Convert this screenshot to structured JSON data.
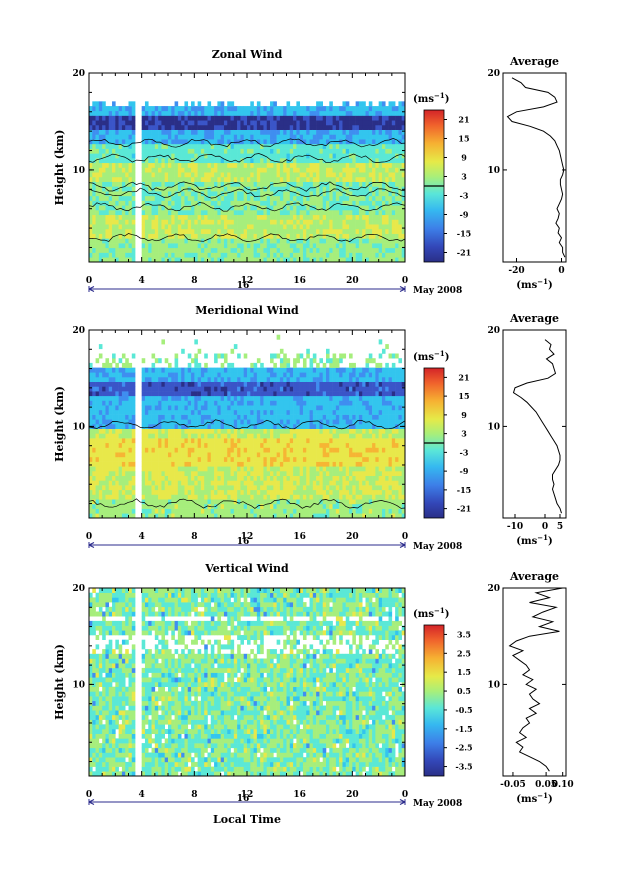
{
  "figure": {
    "xlabel": "Local Time",
    "month_label": "May 2008",
    "day_label": "16",
    "ylabel": "Height (km)",
    "x_ticks": [
      "0",
      "4",
      "8",
      "12",
      "16",
      "20",
      "0"
    ],
    "y_ticks": [
      "20",
      "10"
    ]
  },
  "chart_data": [
    {
      "type": "heatmap",
      "title": "Zonal Wind",
      "unit_label": "(ms",
      "unit_sup": "−1",
      "xlim": [
        0,
        24
      ],
      "ylim": [
        0.5,
        20
      ],
      "colorbar": {
        "ticks": [
          "21",
          "15",
          "9",
          "3",
          "-3",
          "-9",
          "-15",
          "-21"
        ],
        "range": [
          -24,
          24
        ],
        "zero_line": 0
      },
      "profile": {
        "title": "Average",
        "x_ticks": [
          "-20",
          "0"
        ],
        "xlim": [
          -26,
          2
        ],
        "unit_label": "(ms",
        "unit_sup": "−1",
        "heights": [
          19.5,
          19,
          18.5,
          18,
          17.5,
          17,
          16.5,
          16,
          15.5,
          15,
          14.5,
          14,
          13.5,
          13,
          12.5,
          12,
          11.5,
          11,
          10.5,
          10,
          9.5,
          9,
          8.5,
          8,
          7.5,
          7,
          6.5,
          6,
          5.5,
          5,
          4.5,
          4,
          3.5,
          3,
          2.5,
          2,
          1.5,
          1
        ],
        "values": [
          -22,
          -18,
          -16,
          -6,
          -3,
          -2,
          -8,
          -20,
          -24,
          -22,
          -14,
          -8,
          -5,
          -3,
          -2,
          -1,
          -0.5,
          0,
          0.5,
          1,
          0.5,
          -0.5,
          -0.5,
          0,
          0.5,
          0,
          -1,
          -2,
          -1,
          -1.5,
          -2.5,
          -1,
          -1.5,
          0,
          -1,
          0.5,
          0.5,
          1.5
        ]
      }
    },
    {
      "type": "heatmap",
      "title": "Meridional Wind",
      "unit_label": "(ms",
      "unit_sup": "−1",
      "xlim": [
        0,
        24
      ],
      "ylim": [
        0.5,
        20
      ],
      "colorbar": {
        "ticks": [
          "21",
          "15",
          "9",
          "3",
          "-3",
          "-9",
          "-15",
          "-21"
        ],
        "range": [
          -24,
          24
        ],
        "zero_line": 0
      },
      "profile": {
        "title": "Average",
        "x_ticks": [
          "-10",
          "0",
          "5"
        ],
        "xlim": [
          -14,
          7
        ],
        "unit_label": "(ms",
        "unit_sup": "−1",
        "heights": [
          19,
          18.5,
          18,
          17.5,
          17,
          16.5,
          16,
          15.5,
          15,
          14.5,
          14,
          13.5,
          13,
          12.5,
          12,
          11.5,
          11,
          10.5,
          10,
          9.5,
          9,
          8.5,
          8,
          7.5,
          7,
          6.5,
          6,
          5.5,
          5,
          4.5,
          4,
          3.5,
          3,
          2.5,
          2,
          1.5,
          1
        ],
        "values": [
          0,
          2,
          1.5,
          3,
          0.5,
          2.5,
          3,
          3.5,
          1,
          -6,
          -10,
          -10.5,
          -8,
          -6,
          -4.5,
          -3,
          -2,
          -1,
          0,
          1,
          2,
          3,
          4,
          4.5,
          5,
          5,
          4.5,
          3.5,
          2.5,
          2.5,
          3,
          2.5,
          3,
          3.5,
          4,
          5,
          5.5
        ]
      }
    },
    {
      "type": "heatmap",
      "title": "Vertical Wind",
      "unit_label": "(ms",
      "unit_sup": "−1",
      "xlim": [
        0,
        24
      ],
      "ylim": [
        0.5,
        20
      ],
      "colorbar": {
        "ticks": [
          "3.5",
          "2.5",
          "1.5",
          "0.5",
          "-0.5",
          "-1.5",
          "-2.5",
          "-3.5"
        ],
        "range": [
          -4,
          4
        ],
        "zero_line": null
      },
      "profile": {
        "title": "Average",
        "x_ticks": [
          "-0.05",
          "0.05",
          "0.10"
        ],
        "xlim": [
          -0.08,
          0.11
        ],
        "unit_label": "(ms",
        "unit_sup": "−1",
        "heights": [
          20,
          19.5,
          19,
          18.5,
          18,
          17.5,
          17,
          16.5,
          16,
          15.5,
          15,
          14.5,
          14,
          13.5,
          13,
          12.5,
          12,
          11.5,
          11,
          10.5,
          10,
          9.5,
          9,
          8.5,
          8,
          7.5,
          7,
          6.5,
          6,
          5.5,
          5,
          4.5,
          4,
          3.5,
          3,
          2.5,
          2,
          1.5,
          1
        ],
        "values": [
          0.1,
          0.02,
          0.06,
          0.0,
          0.08,
          0.04,
          0.01,
          0.07,
          0.03,
          0.09,
          0.0,
          -0.04,
          -0.06,
          -0.02,
          -0.05,
          -0.03,
          -0.01,
          0.0,
          -0.02,
          0.01,
          -0.01,
          0.02,
          0.0,
          0.01,
          0.03,
          0.0,
          0.02,
          -0.01,
          0.0,
          -0.02,
          -0.03,
          -0.01,
          -0.04,
          -0.02,
          -0.03,
          0.0,
          0.03,
          0.05,
          0.06
        ]
      }
    }
  ],
  "colors": {
    "scale": [
      "#2a2f87",
      "#3a55c8",
      "#3f8ef0",
      "#33c5ee",
      "#5ae8d6",
      "#a6ee7c",
      "#e8e84a",
      "#f6b534",
      "#f0662c",
      "#d8282a"
    ]
  }
}
